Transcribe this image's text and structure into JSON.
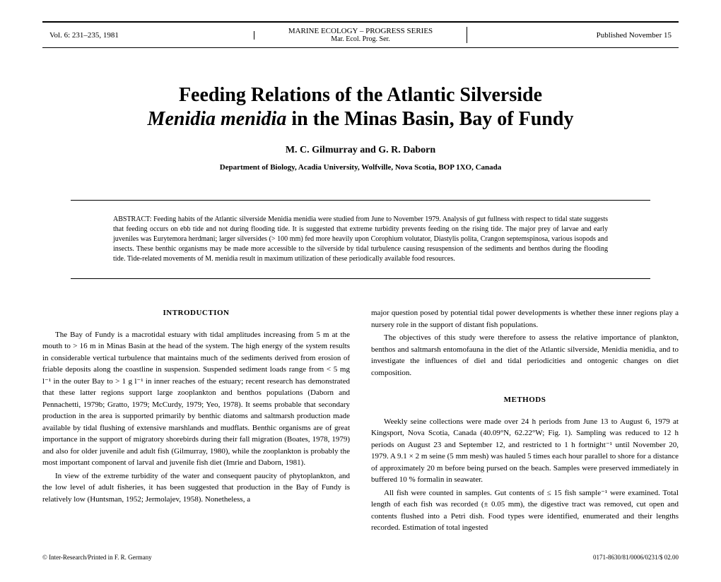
{
  "header": {
    "volume": "Vol. 6: 231–235, 1981",
    "journal_top": "MARINE ECOLOGY – PROGRESS SERIES",
    "journal_bottom": "Mar. Ecol. Prog. Ser.",
    "published": "Published November 15"
  },
  "title_line1": "Feeding Relations of the Atlantic Silverside",
  "title_line2_italic": "Menidia menidia",
  "title_line2_rest": " in the Minas Basin, Bay of Fundy",
  "authors": "M. C. Gilmurray and G. R. Daborn",
  "affiliation": "Department of Biology, Acadia University, Wolfville, Nova Scotia, BOP 1XO, Canada",
  "abstract_label": "ABSTRACT: ",
  "abstract_text": "Feeding habits of the Atlantic silverside Menidia menidia were studied from June to November 1979. Analysis of gut fullness with respect to tidal state suggests that feeding occurs on ebb tide and not during flooding tide. It is suggested that extreme turbidity prevents feeding on the rising tide. The major prey of larvae and early juveniles was Eurytemora herdmani; larger silversides (> 100 mm) fed more heavily upon Corophium volutator, Diastylis polita, Crangon septemspinosa, various isopods and insects. These benthic organisms may be made more accessible to the silverside by tidal turbulence causing resuspension of the sediments and benthos during the flooding tide. Tide-related movements of M. menidia result in maximum utilization of these periodically available food resources.",
  "section_intro": "INTRODUCTION",
  "intro_p1": "The Bay of Fundy is a macrotidal estuary with tidal amplitudes increasing from 5 m at the mouth to > 16 m in Minas Basin at the head of the system. The high energy of the system results in considerable vertical turbulence that maintains much of the sediments derived from erosion of friable deposits along the coastline in suspension. Suspended sediment loads range from < 5 mg l⁻¹ in the outer Bay to > 1 g l⁻¹ in inner reaches of the estuary; recent research has demonstrated that these latter regions support large zooplankton and benthos populations (Daborn and Pennachetti, 1979b; Gratto, 1979; McCurdy, 1979; Yeo, 1978). It seems probable that secondary production in the area is supported primarily by benthic diatoms and saltmarsh production made available by tidal flushing of extensive marshlands and mudflats. Benthic organisms are of great importance in the support of migratory shorebirds during their fall migration (Boates, 1978, 1979) and also for older juvenile and adult fish (Gilmurray, 1980), while the zooplankton is probably the most important component of larval and juvenile fish diet (Imrie and Daborn, 1981).",
  "intro_p2": "In view of the extreme turbidity of the water and consequent paucity of phytoplankton, and the low level of adult fisheries, it has been suggested that production in the Bay of Fundy is relatively low (Huntsman, 1952; Jermolajev, 1958). Nonetheless, a",
  "right_p1": "major question posed by potential tidal power developments is whether these inner regions play a nursery role in the support of distant fish populations.",
  "right_p2": "The objectives of this study were therefore to assess the relative importance of plankton, benthos and saltmarsh entomofauna in the diet of the Atlantic silverside, Menidia menidia, and to investigate the influences of diel and tidal periodicities and ontogenic changes on diet composition.",
  "section_methods": "METHODS",
  "methods_p1": "Weekly seine collections were made over 24 h periods from June 13 to August 6, 1979 at Kingsport, Nova Scotia, Canada (40.09°N, 62.22°W; Fig. 1). Sampling was reduced to 12 h periods on August 23 and September 12, and restricted to 1 h fortnight⁻¹ until November 20, 1979. A 9.1 × 2 m seine (5 mm mesh) was hauled 5 times each hour parallel to shore for a distance of approximately 20 m before being pursed on the beach. Samples were preserved immediately in buffered 10 % formalin in seawater.",
  "methods_p2": "All fish were counted in samples. Gut contents of ≤ 15 fish sample⁻¹ were examined. Total length of each fish was recorded (± 0.05 mm), the digestive tract was removed, cut open and contents flushed into a Petri dish. Food types were identified, enumerated and their lengths recorded. Estimation of total ingested",
  "footer_left": "© Inter-Research/Printed in F. R. Germany",
  "footer_right": "0171-8630/81/0006/0231/$ 02.00"
}
